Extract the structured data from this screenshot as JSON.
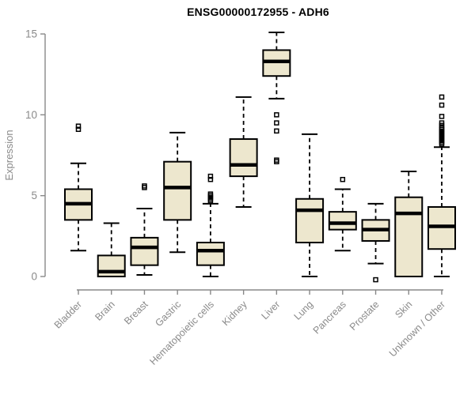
{
  "chart_data": {
    "type": "boxplot",
    "title": "ENSG00000172955 - ADH6",
    "xlabel": "",
    "ylabel": "Expression",
    "ylim": [
      0,
      15
    ],
    "yticks": [
      0,
      5,
      10,
      15
    ],
    "grid": false,
    "legend": "none",
    "categories": [
      "Bladder",
      "Brain",
      "Breast",
      "Gastric",
      "Hematopoietic cells",
      "Kidney",
      "Liver",
      "Lung",
      "Pancreas",
      "Prostate",
      "Skin",
      "Unknown / Other"
    ],
    "series": [
      {
        "category": "Bladder",
        "whisker_low": 1.6,
        "q1": 3.5,
        "median": 4.5,
        "q3": 5.4,
        "whisker_high": 7.0,
        "outliers": [
          9.1,
          9.3
        ]
      },
      {
        "category": "Brain",
        "whisker_low": 0.0,
        "q1": 0.0,
        "median": 0.3,
        "q3": 1.3,
        "whisker_high": 3.3,
        "outliers": []
      },
      {
        "category": "Breast",
        "whisker_low": 0.1,
        "q1": 0.7,
        "median": 1.8,
        "q3": 2.4,
        "whisker_high": 4.2,
        "outliers": [
          5.5,
          5.6
        ]
      },
      {
        "category": "Gastric",
        "whisker_low": 1.5,
        "q1": 3.5,
        "median": 5.5,
        "q3": 7.1,
        "whisker_high": 8.9,
        "outliers": []
      },
      {
        "category": "Hematopoietic cells",
        "whisker_low": 0.0,
        "q1": 0.7,
        "median": 1.6,
        "q3": 2.1,
        "whisker_high": 4.5,
        "outliers": [
          4.7,
          4.8,
          4.9,
          5.0,
          5.1,
          6.0,
          6.2
        ]
      },
      {
        "category": "Kidney",
        "whisker_low": 4.3,
        "q1": 6.2,
        "median": 6.9,
        "q3": 8.5,
        "whisker_high": 11.1,
        "outliers": []
      },
      {
        "category": "Liver",
        "whisker_low": 11.0,
        "q1": 12.4,
        "median": 13.3,
        "q3": 14.0,
        "whisker_high": 15.1,
        "outliers": [
          7.1,
          7.2,
          9.0,
          9.5,
          10.0
        ]
      },
      {
        "category": "Lung",
        "whisker_low": 0.0,
        "q1": 2.1,
        "median": 4.1,
        "q3": 4.8,
        "whisker_high": 8.8,
        "outliers": []
      },
      {
        "category": "Pancreas",
        "whisker_low": 1.6,
        "q1": 2.9,
        "median": 3.3,
        "q3": 4.0,
        "whisker_high": 5.4,
        "outliers": [
          6.0
        ]
      },
      {
        "category": "Prostate",
        "whisker_low": 0.8,
        "q1": 2.2,
        "median": 2.9,
        "q3": 3.5,
        "whisker_high": 4.5,
        "outliers": [
          -0.2
        ]
      },
      {
        "category": "Skin",
        "whisker_low": 0.0,
        "q1": 0.0,
        "median": 3.9,
        "q3": 4.9,
        "whisker_high": 6.5,
        "outliers": []
      },
      {
        "category": "Unknown / Other",
        "whisker_low": 0.0,
        "q1": 1.7,
        "median": 3.1,
        "q3": 4.3,
        "whisker_high": 8.0,
        "outliers": [
          8.2,
          8.3,
          8.4,
          8.5,
          8.6,
          8.7,
          8.8,
          8.9,
          9.0,
          9.1,
          9.2,
          9.35,
          9.5,
          9.9,
          10.6,
          11.1
        ]
      }
    ],
    "colors": {
      "box_fill": "#EDE7CE",
      "box_border": "#000000",
      "median": "#000000",
      "whisker": "#000000",
      "outlier": "#000000",
      "axis": "#888888",
      "tick_text": "#8a8a8a",
      "title_text": "#000000",
      "background": "#FFFFFF"
    }
  }
}
